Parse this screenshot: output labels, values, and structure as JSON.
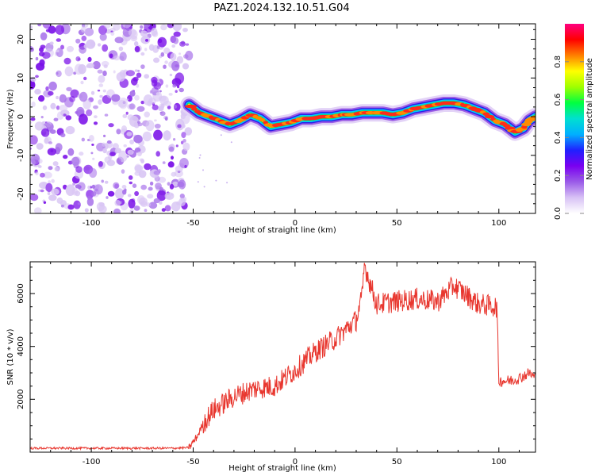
{
  "figure": {
    "title": "PAZ1.2024.132.10.51.G04"
  },
  "colors": {
    "axis": "#000000",
    "snr_line": "#e8372f",
    "speckle": "#7a1fe0",
    "colormap": [
      "#ffffff",
      "#d8c2f5",
      "#9a5ae8",
      "#7a00f0",
      "#2020ff",
      "#00b0ff",
      "#00e0d0",
      "#00ff40",
      "#a0ff00",
      "#ffff00",
      "#ff8000",
      "#ff0000",
      "#ff0080"
    ]
  },
  "chart_data": [
    {
      "type": "heatmap",
      "title": "PAZ1.2024.132.10.51.G04",
      "xlabel": "Height of straight line (km)",
      "ylabel": "Frequency (Hz)",
      "xlim": [
        -130,
        118
      ],
      "ylim": [
        -25,
        24
      ],
      "xticks": [
        -100,
        -50,
        0,
        50,
        100
      ],
      "yticks": [
        -20,
        -10,
        0,
        10,
        20
      ],
      "noise_region_x": [
        -130,
        -52
      ],
      "colorbar": {
        "label": "Normalized spectral amplitude",
        "range": [
          0,
          1
        ],
        "ticks": [
          "0.0",
          "0.2",
          "0.4",
          "0.6",
          "0.8"
        ],
        "tick_values": [
          0.0,
          0.2,
          0.4,
          0.6,
          0.8
        ]
      },
      "ridge": {
        "x": [
          -52,
          -47,
          -42,
          -37,
          -32,
          -27,
          -22,
          -17,
          -12,
          -7,
          -2,
          3,
          8,
          13,
          18,
          23,
          28,
          33,
          38,
          43,
          48,
          53,
          58,
          63,
          68,
          73,
          78,
          83,
          88,
          93,
          98,
          103,
          108,
          112,
          115,
          118
        ],
        "y": [
          3,
          1,
          0,
          -1,
          -2,
          -1,
          0.5,
          -0.5,
          -2.5,
          -2,
          -1.5,
          -0.5,
          -0.5,
          0,
          0,
          0.5,
          0.5,
          1,
          1,
          1,
          0.5,
          1,
          2,
          2.5,
          3,
          3.5,
          3.5,
          3,
          2,
          1,
          -1,
          -2,
          -4,
          -3,
          -1,
          0
        ]
      }
    },
    {
      "type": "line",
      "xlabel": "Height of straight line (km)",
      "ylabel": "SNR (10 * v/v)",
      "xlim": [
        -130,
        118
      ],
      "ylim": [
        0,
        7200
      ],
      "xticks": [
        -100,
        -50,
        0,
        50,
        100
      ],
      "yticks": [
        2000,
        4000,
        6000
      ],
      "series": [
        {
          "x": [
            -130,
            -60,
            -52,
            -48,
            -45,
            -40,
            -30,
            -20,
            -10,
            0,
            10,
            20,
            30,
            33,
            34,
            40,
            50,
            60,
            70,
            78,
            90,
            99,
            100,
            105,
            110,
            115,
            118
          ],
          "y": [
            150,
            150,
            170,
            600,
            1100,
            1600,
            2100,
            2400,
            2500,
            3100,
            3800,
            4300,
            5000,
            5900,
            7100,
            5600,
            5700,
            5800,
            5700,
            6300,
            5600,
            5500,
            2700,
            2700,
            2800,
            3000,
            2800
          ]
        }
      ]
    }
  ]
}
